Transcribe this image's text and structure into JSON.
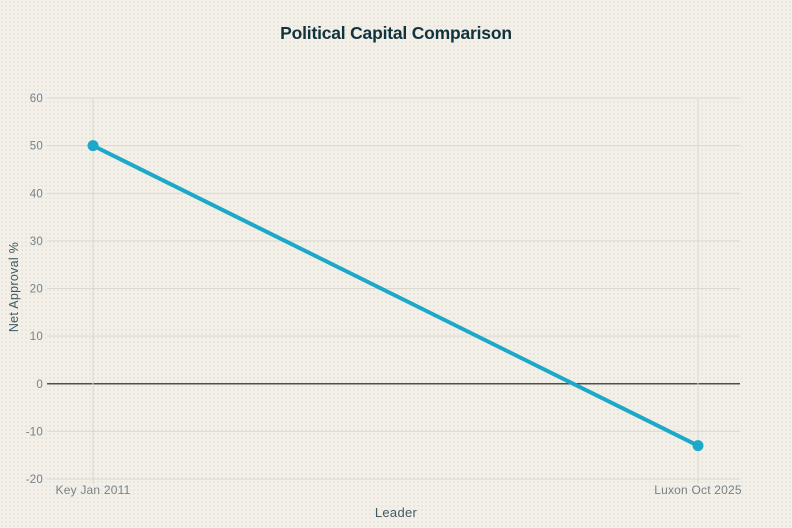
{
  "page": {
    "background": "#f2f0e9"
  },
  "chart_data": {
    "type": "line",
    "title": "Political Capital Comparison",
    "xlabel": "Leader",
    "ylabel": "Net Approval %",
    "categories": [
      "Key Jan 2011",
      "Luxon Oct 2025"
    ],
    "series": [
      {
        "name": "Net Approval",
        "values": [
          50,
          -13
        ]
      }
    ],
    "ylim": [
      -20,
      60
    ],
    "yticks": [
      60,
      50,
      40,
      30,
      20,
      10,
      0,
      -10,
      -20
    ],
    "grid": "horizontal gridlines at every y tick, vertical gridline at each category, darker line at zero",
    "legend": "none",
    "marker": "circle endpoints on line",
    "colors": {
      "line": "#1ca8c8",
      "marker": "#1ca8c8",
      "grid": "#dbd8d0",
      "zero_line": "#50504a",
      "title": "#12333d",
      "axis_label": "#3f5a63",
      "tick_label": "#76828a",
      "background": "#f2f0e9"
    }
  }
}
